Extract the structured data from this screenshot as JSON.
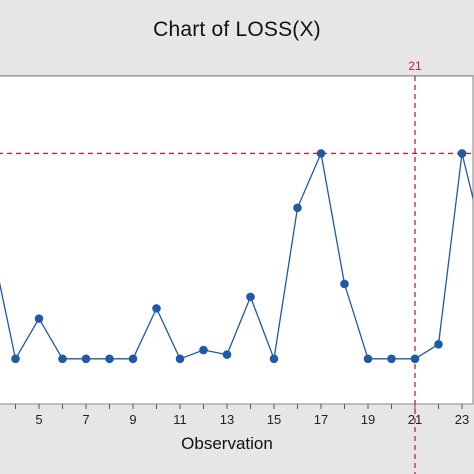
{
  "chart_data": {
    "type": "line",
    "title": "Chart of LOSS(X)",
    "xlabel": "Observation",
    "ylabel": "",
    "x_ticks": [
      5,
      7,
      9,
      11,
      13,
      15,
      17,
      19,
      21,
      23
    ],
    "xlim": [
      3.4,
      23.6
    ],
    "ylim": [
      0,
      10
    ],
    "series": [
      {
        "x": [
          3.3,
          4,
          5,
          6,
          7,
          8,
          9,
          10,
          11,
          12,
          13,
          14,
          15,
          16,
          17,
          18,
          19,
          20,
          21,
          22,
          23,
          23.6
        ],
        "y": [
          3.6,
          1.0,
          2.33,
          1.0,
          1.0,
          1.0,
          1.0,
          2.67,
          1.0,
          1.29,
          1.14,
          3.05,
          1.0,
          6.0,
          7.8,
          3.48,
          1.0,
          1.0,
          1.0,
          1.48,
          7.8,
          5.9
        ],
        "color": "#1f5aa6"
      }
    ],
    "reference_line": {
      "y": 7.8,
      "color": "#c0262c",
      "style": "dashed"
    },
    "vertical_marker": {
      "x": 21,
      "label": "21",
      "color": "#c0262c",
      "style": "dashed"
    },
    "grid": false
  }
}
